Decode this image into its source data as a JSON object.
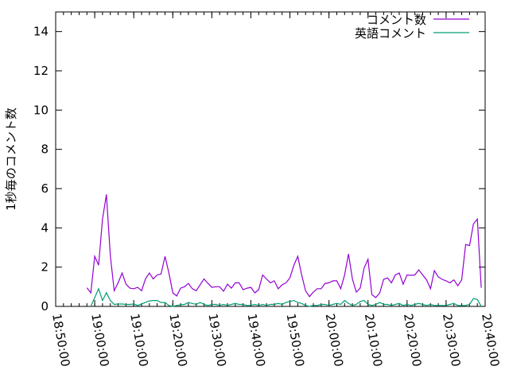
{
  "chart_data": {
    "type": "line",
    "title": "",
    "xlabel": "",
    "ylabel": "1秒毎のコメント数",
    "xlim": [
      "18:50:00",
      "20:40:00"
    ],
    "ylim": [
      0,
      15
    ],
    "xticks": [
      "18:50:00",
      "19:00:00",
      "19:10:00",
      "19:20:00",
      "19:30:00",
      "19:40:00",
      "19:50:00",
      "20:00:00",
      "20:10:00",
      "20:20:00",
      "20:30:00",
      "20:40:00"
    ],
    "yticks": [
      "0",
      "2",
      "4",
      "6",
      "8",
      "10",
      "12",
      "14"
    ],
    "grid": false,
    "legend": "top-right",
    "series": [
      {
        "name": "コメント数",
        "color": "#9400d3",
        "points": [
          [
            "18:58",
            0.95
          ],
          [
            "18:59",
            0.69
          ],
          [
            "19:00",
            2.55
          ],
          [
            "19:01",
            2.1
          ],
          [
            "19:02",
            4.45
          ],
          [
            "19:03",
            5.7
          ],
          [
            "19:04",
            2.6
          ],
          [
            "19:05",
            0.8
          ],
          [
            "19:06",
            1.2
          ],
          [
            "19:07",
            1.7
          ],
          [
            "19:08",
            1.13
          ],
          [
            "19:09",
            0.93
          ],
          [
            "19:10",
            0.9
          ],
          [
            "19:11",
            0.97
          ],
          [
            "19:12",
            0.8
          ],
          [
            "19:13",
            1.4
          ],
          [
            "19:14",
            1.7
          ],
          [
            "19:15",
            1.4
          ],
          [
            "19:16",
            1.6
          ],
          [
            "19:17",
            1.65
          ],
          [
            "19:18",
            2.55
          ],
          [
            "19:19",
            1.7
          ],
          [
            "19:20",
            0.69
          ],
          [
            "19:21",
            0.53
          ],
          [
            "19:22",
            0.93
          ],
          [
            "19:23",
            1.0
          ],
          [
            "19:24",
            1.17
          ],
          [
            "19:25",
            0.9
          ],
          [
            "19:26",
            0.8
          ],
          [
            "19:27",
            1.1
          ],
          [
            "19:28",
            1.4
          ],
          [
            "19:29",
            1.17
          ],
          [
            "19:30",
            0.97
          ],
          [
            "19:31",
            1.0
          ],
          [
            "19:32",
            1.0
          ],
          [
            "19:33",
            0.77
          ],
          [
            "19:34",
            1.13
          ],
          [
            "19:35",
            0.93
          ],
          [
            "19:36",
            1.2
          ],
          [
            "19:37",
            1.2
          ],
          [
            "19:38",
            0.85
          ],
          [
            "19:39",
            0.93
          ],
          [
            "19:40",
            0.97
          ],
          [
            "19:41",
            0.69
          ],
          [
            "19:42",
            0.85
          ],
          [
            "19:43",
            1.6
          ],
          [
            "19:44",
            1.4
          ],
          [
            "19:45",
            1.2
          ],
          [
            "19:46",
            1.3
          ],
          [
            "19:47",
            0.9
          ],
          [
            "19:48",
            1.1
          ],
          [
            "19:49",
            1.2
          ],
          [
            "19:50",
            1.45
          ],
          [
            "19:51",
            2.1
          ],
          [
            "19:52",
            2.55
          ],
          [
            "19:53",
            1.6
          ],
          [
            "19:54",
            0.8
          ],
          [
            "19:55",
            0.5
          ],
          [
            "19:56",
            0.73
          ],
          [
            "19:57",
            0.9
          ],
          [
            "19:58",
            0.9
          ],
          [
            "19:59",
            1.17
          ],
          [
            "20:00",
            1.2
          ],
          [
            "20:01",
            1.3
          ],
          [
            "20:02",
            1.3
          ],
          [
            "20:03",
            0.9
          ],
          [
            "20:04",
            1.6
          ],
          [
            "20:05",
            2.67
          ],
          [
            "20:06",
            1.4
          ],
          [
            "20:07",
            0.73
          ],
          [
            "20:08",
            0.93
          ],
          [
            "20:09",
            1.95
          ],
          [
            "20:10",
            2.4
          ],
          [
            "20:11",
            0.6
          ],
          [
            "20:12",
            0.45
          ],
          [
            "20:13",
            0.69
          ],
          [
            "20:14",
            1.38
          ],
          [
            "20:15",
            1.45
          ],
          [
            "20:16",
            1.2
          ],
          [
            "20:17",
            1.6
          ],
          [
            "20:18",
            1.7
          ],
          [
            "20:19",
            1.13
          ],
          [
            "20:20",
            1.6
          ],
          [
            "20:21",
            1.58
          ],
          [
            "20:22",
            1.6
          ],
          [
            "20:23",
            1.86
          ],
          [
            "20:24",
            1.6
          ],
          [
            "20:25",
            1.35
          ],
          [
            "20:26",
            0.9
          ],
          [
            "20:27",
            1.82
          ],
          [
            "20:28",
            1.5
          ],
          [
            "20:29",
            1.38
          ],
          [
            "20:30",
            1.3
          ],
          [
            "20:31",
            1.2
          ],
          [
            "20:32",
            1.35
          ],
          [
            "20:33",
            1.05
          ],
          [
            "20:34",
            1.35
          ],
          [
            "20:35",
            3.15
          ],
          [
            "20:36",
            3.1
          ],
          [
            "20:37",
            4.2
          ],
          [
            "20:38",
            4.45
          ],
          [
            "20:39",
            0.95
          ]
        ]
      },
      {
        "name": "英語コメント",
        "color": "#009e73",
        "points": [
          [
            "18:59",
            0
          ],
          [
            "19:00",
            0.45
          ],
          [
            "19:01",
            0.9
          ],
          [
            "19:02",
            0.3
          ],
          [
            "19:03",
            0.7
          ],
          [
            "19:04",
            0.3
          ],
          [
            "19:05",
            0.1
          ],
          [
            "19:06",
            0.12
          ],
          [
            "19:07",
            0.12
          ],
          [
            "19:08",
            0.1
          ],
          [
            "19:09",
            0.1
          ],
          [
            "19:10",
            0.12
          ],
          [
            "19:11",
            0.05
          ],
          [
            "19:12",
            0.12
          ],
          [
            "19:13",
            0.2
          ],
          [
            "19:14",
            0.28
          ],
          [
            "19:15",
            0.3
          ],
          [
            "19:16",
            0.3
          ],
          [
            "19:17",
            0.2
          ],
          [
            "19:18",
            0.2
          ],
          [
            "19:19",
            0.05
          ],
          [
            "19:20",
            0
          ],
          [
            "19:21",
            0.05
          ],
          [
            "19:22",
            0.08
          ],
          [
            "19:23",
            0.1
          ],
          [
            "19:24",
            0.2
          ],
          [
            "19:25",
            0.15
          ],
          [
            "19:26",
            0.1
          ],
          [
            "19:27",
            0.2
          ],
          [
            "19:28",
            0.1
          ],
          [
            "19:29",
            0.05
          ],
          [
            "19:30",
            0.1
          ],
          [
            "19:31",
            0.1
          ],
          [
            "19:32",
            0.05
          ],
          [
            "19:33",
            0.1
          ],
          [
            "19:34",
            0.05
          ],
          [
            "19:35",
            0.1
          ],
          [
            "19:36",
            0.15
          ],
          [
            "19:37",
            0.1
          ],
          [
            "19:38",
            0.1
          ],
          [
            "19:39",
            0.05
          ],
          [
            "19:40",
            0.05
          ],
          [
            "19:41",
            0.1
          ],
          [
            "19:42",
            0.05
          ],
          [
            "19:43",
            0.1
          ],
          [
            "19:44",
            0.05
          ],
          [
            "19:45",
            0.1
          ],
          [
            "19:46",
            0.1
          ],
          [
            "19:47",
            0.15
          ],
          [
            "19:48",
            0.1
          ],
          [
            "19:49",
            0.2
          ],
          [
            "19:50",
            0.25
          ],
          [
            "19:51",
            0.3
          ],
          [
            "19:52",
            0.2
          ],
          [
            "19:53",
            0.15
          ],
          [
            "19:54",
            0.05
          ],
          [
            "19:55",
            0
          ],
          [
            "19:56",
            0.05
          ],
          [
            "19:57",
            0.05
          ],
          [
            "19:58",
            0.1
          ],
          [
            "19:59",
            0.1
          ],
          [
            "20:00",
            0.05
          ],
          [
            "20:01",
            0.1
          ],
          [
            "20:02",
            0.15
          ],
          [
            "20:03",
            0.1
          ],
          [
            "20:04",
            0.3
          ],
          [
            "20:05",
            0.15
          ],
          [
            "20:06",
            0.05
          ],
          [
            "20:07",
            0.1
          ],
          [
            "20:08",
            0.25
          ],
          [
            "20:09",
            0.3
          ],
          [
            "20:10",
            0.1
          ],
          [
            "20:11",
            0.05
          ],
          [
            "20:12",
            0.1
          ],
          [
            "20:13",
            0.2
          ],
          [
            "20:14",
            0.1
          ],
          [
            "20:15",
            0.1
          ],
          [
            "20:16",
            0.05
          ],
          [
            "20:17",
            0.1
          ],
          [
            "20:18",
            0.15
          ],
          [
            "20:19",
            0.05
          ],
          [
            "20:20",
            0.1
          ],
          [
            "20:21",
            0.05
          ],
          [
            "20:22",
            0.1
          ],
          [
            "20:23",
            0.15
          ],
          [
            "20:24",
            0.1
          ],
          [
            "20:25",
            0.05
          ],
          [
            "20:26",
            0.1
          ],
          [
            "20:27",
            0.05
          ],
          [
            "20:28",
            0.05
          ],
          [
            "20:29",
            0.05
          ],
          [
            "20:30",
            0.05
          ],
          [
            "20:31",
            0.1
          ],
          [
            "20:32",
            0.15
          ],
          [
            "20:33",
            0.05
          ],
          [
            "20:34",
            0.05
          ],
          [
            "20:35",
            0.05
          ],
          [
            "20:36",
            0.1
          ],
          [
            "20:37",
            0.4
          ],
          [
            "20:38",
            0.35
          ],
          [
            "20:39",
            0
          ]
        ]
      }
    ]
  }
}
